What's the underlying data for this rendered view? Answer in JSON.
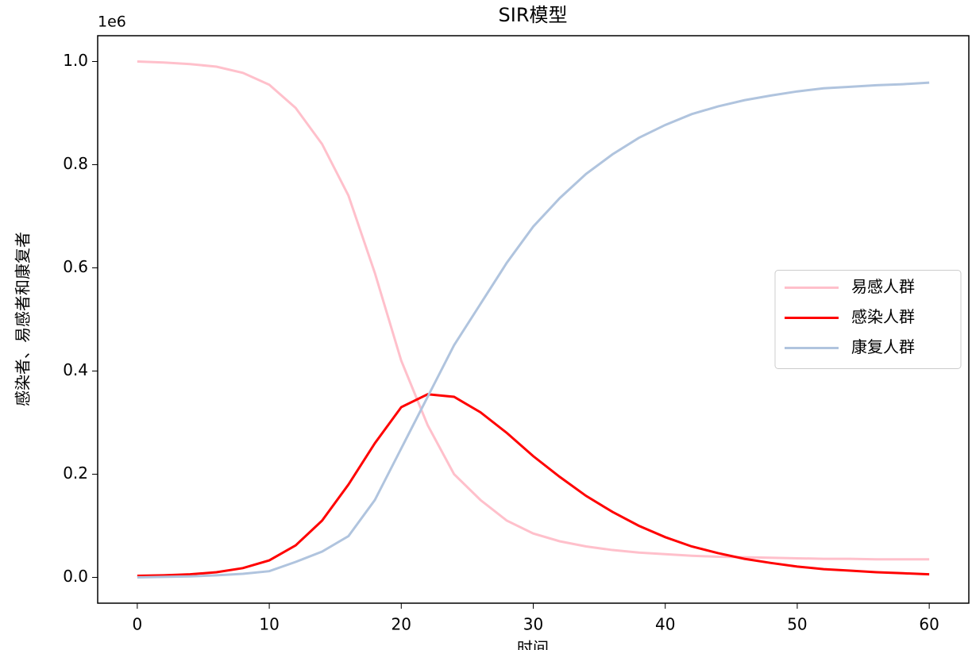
{
  "chart_data": {
    "type": "line",
    "title": "SIR模型",
    "x_label": "时间",
    "y_label": "感染者、易感者和康复者",
    "y_offset_text": "1e6",
    "x": [
      0,
      2,
      4,
      6,
      8,
      10,
      12,
      14,
      16,
      18,
      20,
      22,
      24,
      26,
      28,
      30,
      32,
      34,
      36,
      38,
      40,
      42,
      44,
      46,
      48,
      50,
      52,
      54,
      56,
      58,
      60
    ],
    "series": [
      {
        "name": "易感人群",
        "color": "#ffc0cb",
        "values": [
          1.0,
          0.998,
          0.995,
          0.99,
          0.978,
          0.955,
          0.91,
          0.84,
          0.74,
          0.59,
          0.42,
          0.295,
          0.2,
          0.15,
          0.11,
          0.085,
          0.07,
          0.06,
          0.053,
          0.048,
          0.045,
          0.042,
          0.04,
          0.039,
          0.038,
          0.037,
          0.036,
          0.036,
          0.035,
          0.035,
          0.035
        ]
      },
      {
        "name": "感染人群",
        "color": "#ff0000",
        "values": [
          0.003,
          0.004,
          0.006,
          0.01,
          0.018,
          0.033,
          0.062,
          0.11,
          0.18,
          0.26,
          0.33,
          0.355,
          0.35,
          0.32,
          0.28,
          0.235,
          0.195,
          0.158,
          0.127,
          0.1,
          0.078,
          0.06,
          0.047,
          0.036,
          0.028,
          0.021,
          0.016,
          0.013,
          0.01,
          0.008,
          0.006
        ]
      },
      {
        "name": "康复人群",
        "color": "#b0c4de",
        "values": [
          0.0,
          0.001,
          0.002,
          0.004,
          0.007,
          0.012,
          0.03,
          0.05,
          0.08,
          0.15,
          0.25,
          0.35,
          0.45,
          0.53,
          0.61,
          0.68,
          0.735,
          0.782,
          0.82,
          0.852,
          0.877,
          0.898,
          0.913,
          0.925,
          0.934,
          0.942,
          0.948,
          0.951,
          0.954,
          0.956,
          0.959
        ]
      }
    ],
    "xlim": [
      -3,
      63
    ],
    "xticks": [
      0,
      10,
      20,
      30,
      40,
      50,
      60
    ],
    "ylim": [
      -0.05,
      1.05
    ],
    "yticks": [
      {
        "value": 0,
        "label": "0.0"
      },
      {
        "value": 0.2,
        "label": "0.2"
      },
      {
        "value": 0.4,
        "label": "0.4"
      },
      {
        "value": 0.6,
        "label": "0.6"
      },
      {
        "value": 0.8,
        "label": "0.8"
      },
      {
        "value": 1,
        "label": "1.0"
      }
    ],
    "legend": "center right",
    "grid": false
  }
}
